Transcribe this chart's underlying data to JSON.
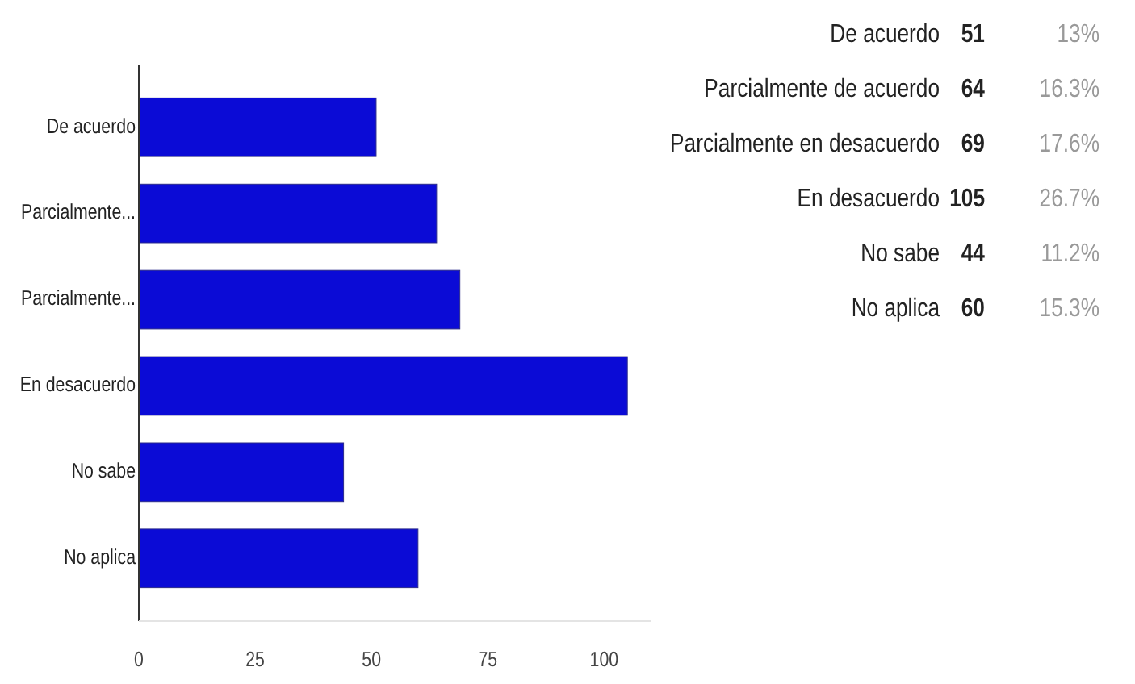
{
  "chart_data": [
    {
      "type": "bar",
      "orientation": "horizontal",
      "categories": [
        "De acuerdo",
        "Parcialmente...",
        "Parcialmente...",
        "En desacuerdo",
        "No sabe",
        "No aplica"
      ],
      "values": [
        51,
        64,
        69,
        105,
        44,
        60
      ],
      "color": "#0b0bd6",
      "xlim": [
        0,
        110
      ],
      "xticks": [
        0,
        25,
        50,
        75,
        100
      ]
    },
    {
      "type": "other",
      "categories": [
        "De acuerdo",
        "Parcialmente de acuerdo",
        "Parcialmente en desacuerdo",
        "En desacuerdo",
        "No sabe",
        "No aplica"
      ],
      "values": [
        51,
        64,
        69,
        105,
        44,
        60
      ],
      "data_labels": true,
      "annotations": [
        "13%",
        "16.3%",
        "17.6%",
        "26.7%",
        "11.2%",
        "15.3%"
      ]
    }
  ]
}
